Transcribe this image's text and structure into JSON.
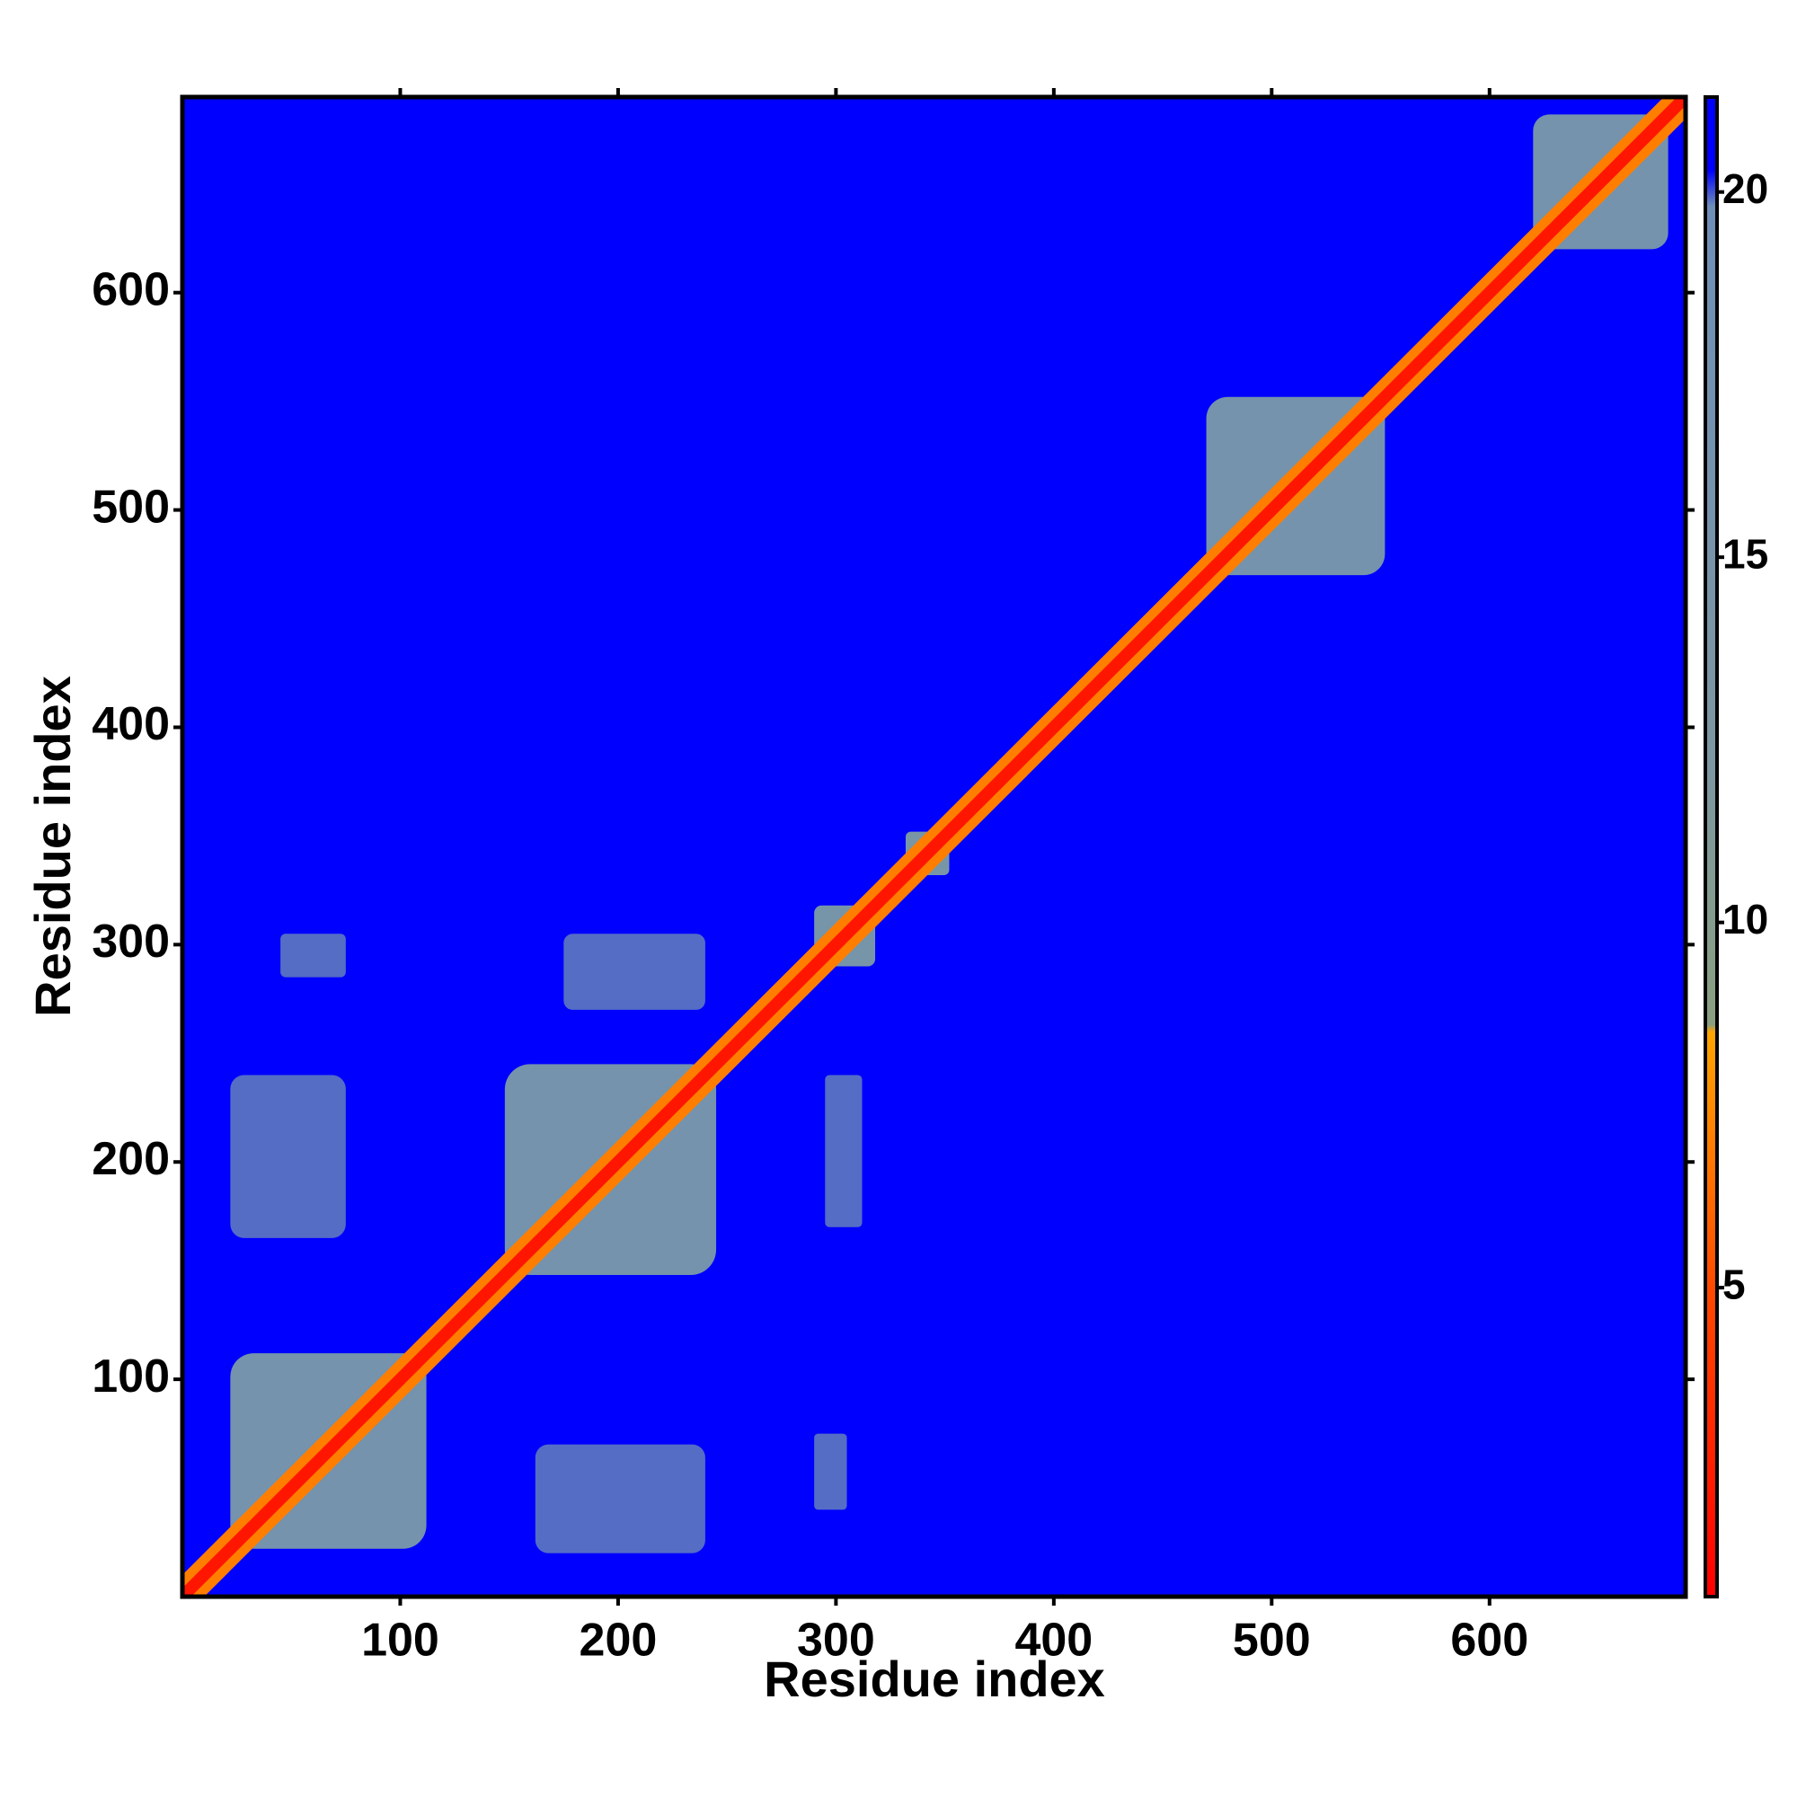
{
  "chart_data": {
    "type": "heatmap",
    "xlabel": "Residue index",
    "ylabel": "Residue index",
    "xlim": [
      0,
      690
    ],
    "ylim": [
      0,
      690
    ],
    "xticks": [
      100,
      200,
      300,
      400,
      500,
      600
    ],
    "yticks": [
      100,
      200,
      300,
      400,
      500,
      600
    ],
    "clim": [
      0.77,
      21.3
    ],
    "cticks": [
      5,
      10,
      15,
      20
    ],
    "colormap": [
      [
        0.77,
        "#ff0000"
      ],
      [
        5,
        "#ff4a00"
      ],
      [
        8.5,
        "#ffa500"
      ],
      [
        8.6,
        "#8aa080"
      ],
      [
        12,
        "#7d98a0"
      ],
      [
        19.8,
        "#6e8fb8"
      ],
      [
        20.3,
        "#0000ff"
      ],
      [
        21.3,
        "#0000ff"
      ]
    ],
    "background": 21,
    "regions": [
      {
        "x": [
          22,
          112
        ],
        "y": [
          22,
          112
        ],
        "value": 16
      },
      {
        "x": [
          148,
          245
        ],
        "y": [
          148,
          245
        ],
        "value": 16
      },
      {
        "x": [
          290,
          318
        ],
        "y": [
          290,
          318
        ],
        "value": 15
      },
      {
        "x": [
          332,
          352
        ],
        "y": [
          332,
          352
        ],
        "value": 14
      },
      {
        "x": [
          470,
          552
        ],
        "y": [
          470,
          552
        ],
        "value": 16
      },
      {
        "x": [
          620,
          682
        ],
        "y": [
          620,
          682
        ],
        "value": 16
      },
      {
        "x": [
          22,
          75
        ],
        "y": [
          165,
          240
        ],
        "value": 18
      },
      {
        "x": [
          45,
          75
        ],
        "y": [
          285,
          305
        ],
        "value": 18
      },
      {
        "x": [
          162,
          240
        ],
        "y": [
          20,
          70
        ],
        "value": 18
      },
      {
        "x": [
          175,
          240
        ],
        "y": [
          270,
          305
        ],
        "value": 18
      },
      {
        "x": [
          295,
          312
        ],
        "y": [
          170,
          240
        ],
        "value": 18
      },
      {
        "x": [
          290,
          305
        ],
        "y": [
          40,
          75
        ],
        "value": 18
      }
    ],
    "diagonal": [
      {
        "halfwidth": 5,
        "value": 7
      },
      {
        "halfwidth": 2,
        "value": 2
      }
    ]
  }
}
